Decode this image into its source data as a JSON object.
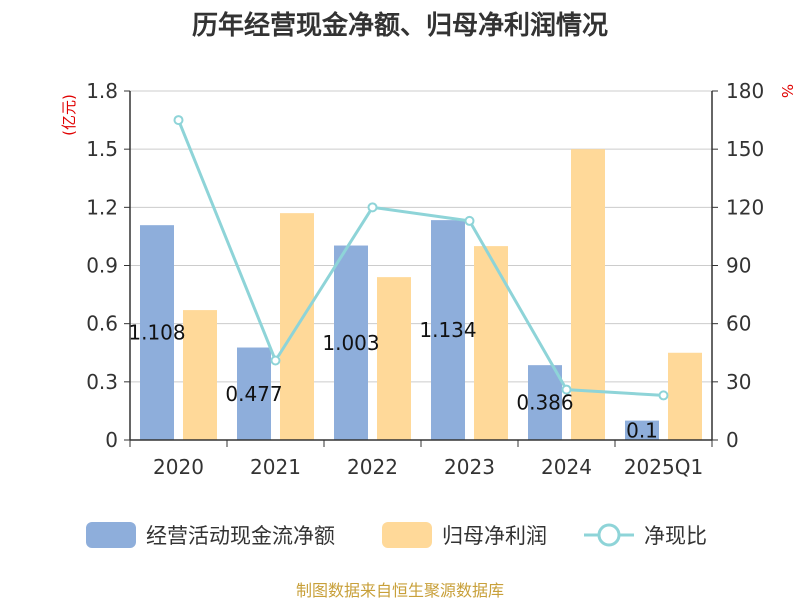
{
  "colors": {
    "cashflow": "#8eaedb",
    "netprofit": "#ffd999",
    "ratio": "#8ed4d8",
    "unit": "#e00000",
    "source": "#c8a03a"
  },
  "chart_data": {
    "type": "bar",
    "title": "历年经营现金净额、归母净利润情况",
    "categories": [
      "2020",
      "2021",
      "2022",
      "2023",
      "2024",
      "2025Q1"
    ],
    "ylabel_left": "(亿元)",
    "ylabel_right": "%",
    "ylim_left": [
      0,
      1.8
    ],
    "ylim_right": [
      0,
      180
    ],
    "yticks_left": [
      "0",
      "0.3",
      "0.6",
      "0.9",
      "1.2",
      "1.5",
      "1.8"
    ],
    "yticks_right": [
      "0",
      "30",
      "60",
      "90",
      "120",
      "150",
      "180"
    ],
    "grid": true,
    "legend_position": "bottom",
    "series": [
      {
        "name": "经营活动现金流净额",
        "type": "bar",
        "axis": "left",
        "values": [
          1.108,
          0.477,
          1.003,
          1.134,
          0.386,
          0.1
        ],
        "labels": [
          "1.108",
          "0.477",
          "1.003",
          "1.134",
          "0.386",
          "0.1"
        ]
      },
      {
        "name": "归母净利润",
        "type": "bar",
        "axis": "left",
        "values": [
          0.67,
          1.17,
          0.84,
          1.0,
          1.5,
          0.45
        ]
      },
      {
        "name": "净现比",
        "type": "line",
        "axis": "right",
        "values": [
          165,
          41,
          120,
          113,
          26,
          23
        ]
      }
    ]
  },
  "footer": {
    "source": "制图数据来自恒生聚源数据库"
  }
}
